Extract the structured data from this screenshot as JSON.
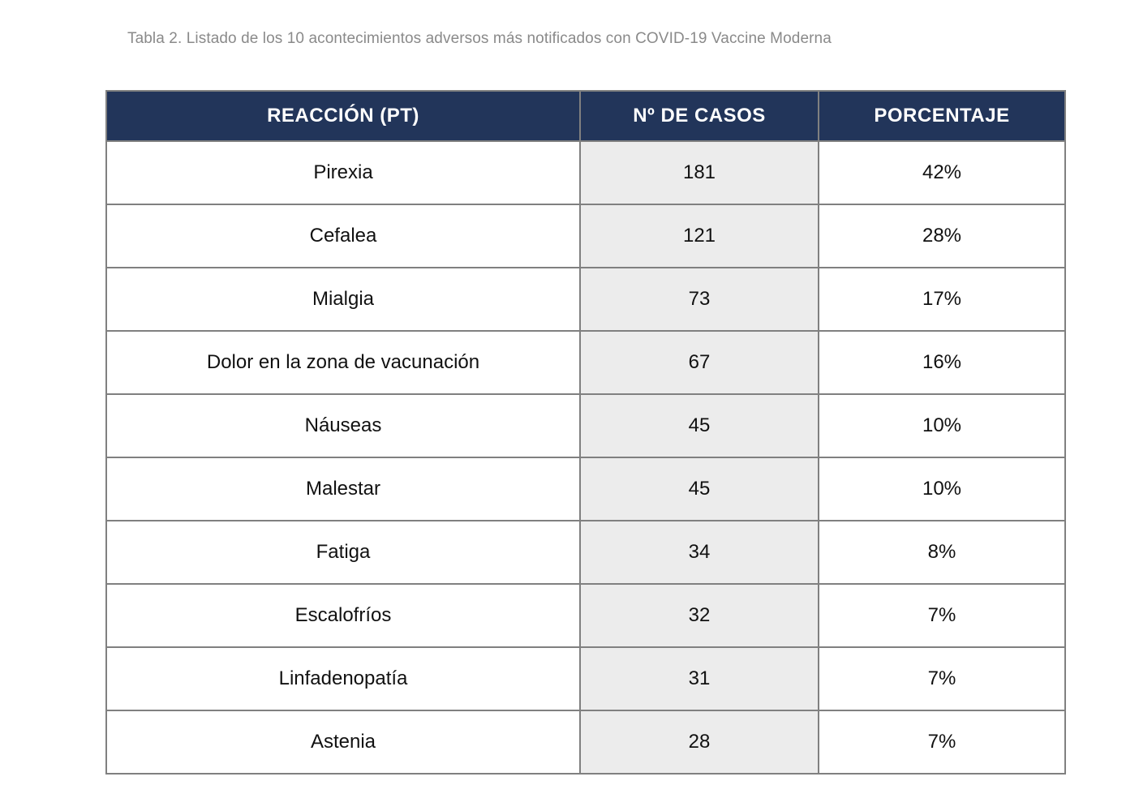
{
  "caption": "Tabla 2. Listado de los 10 acontecimientos adversos más notificados con COVID-19 Vaccine Moderna",
  "colors": {
    "header_bg": "#22355a",
    "cases_column_bg": "#ececec",
    "border": "#808080"
  },
  "table": {
    "headers": [
      "REACCIÓN (PT)",
      "Nº DE CASOS",
      "PORCENTAJE"
    ],
    "rows": [
      [
        "Pirexia",
        "181",
        "42%"
      ],
      [
        "Cefalea",
        "121",
        "28%"
      ],
      [
        "Mialgia",
        "73",
        "17%"
      ],
      [
        "Dolor en la zona de vacunación",
        "67",
        "16%"
      ],
      [
        "Náuseas",
        "45",
        "10%"
      ],
      [
        "Malestar",
        "45",
        "10%"
      ],
      [
        "Fatiga",
        "34",
        "8%"
      ],
      [
        "Escalofríos",
        "32",
        "7%"
      ],
      [
        "Linfadenopatía",
        "31",
        "7%"
      ],
      [
        "Astenia",
        "28",
        "7%"
      ]
    ]
  }
}
